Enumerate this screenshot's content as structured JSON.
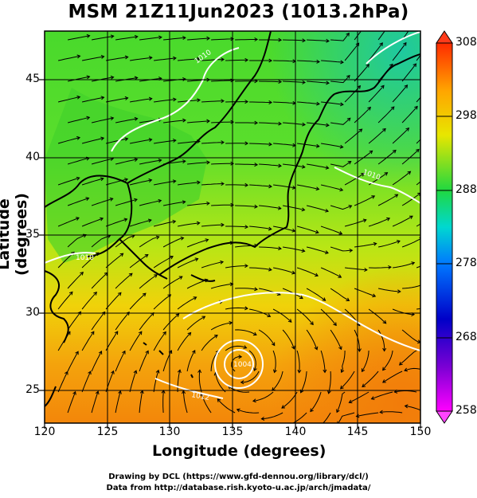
{
  "title": "MSM 21Z11Jun2023 (1013.2hPa)",
  "xaxis": {
    "label": "Longitude (degrees)",
    "ticks": [
      "120",
      "125",
      "130",
      "135",
      "140",
      "145",
      "150"
    ],
    "range": [
      120,
      150
    ]
  },
  "yaxis": {
    "label": "Latitude  (degrees)",
    "ticks": [
      "25",
      "30",
      "35",
      "40",
      "45"
    ],
    "range": [
      22.4,
      47.6
    ]
  },
  "colorbar": {
    "ticks": [
      "258",
      "268",
      "278",
      "288",
      "298",
      "308"
    ],
    "range": [
      258,
      308
    ],
    "colors": [
      "#ff00ff",
      "#0000aa",
      "#00bfff",
      "#00e0a0",
      "#22dd22",
      "#e6e600",
      "#ff8c00",
      "#ff2a00"
    ]
  },
  "contour_labels": [
    "1010",
    "1010",
    "1010",
    "1012",
    "1004"
  ],
  "credits": {
    "line1": "Drawing by DCL (https://www.gfd-dennou.org/library/dcl/)",
    "line2": "Data from http://database.rish.kyoto-u.ac.jp/arch/jmadata/"
  },
  "map": {
    "typhoon_center": {
      "lon": 135.4,
      "lat": 26.8
    },
    "land_outline_color": "#000000",
    "isobar_color": "#ffffff"
  }
}
